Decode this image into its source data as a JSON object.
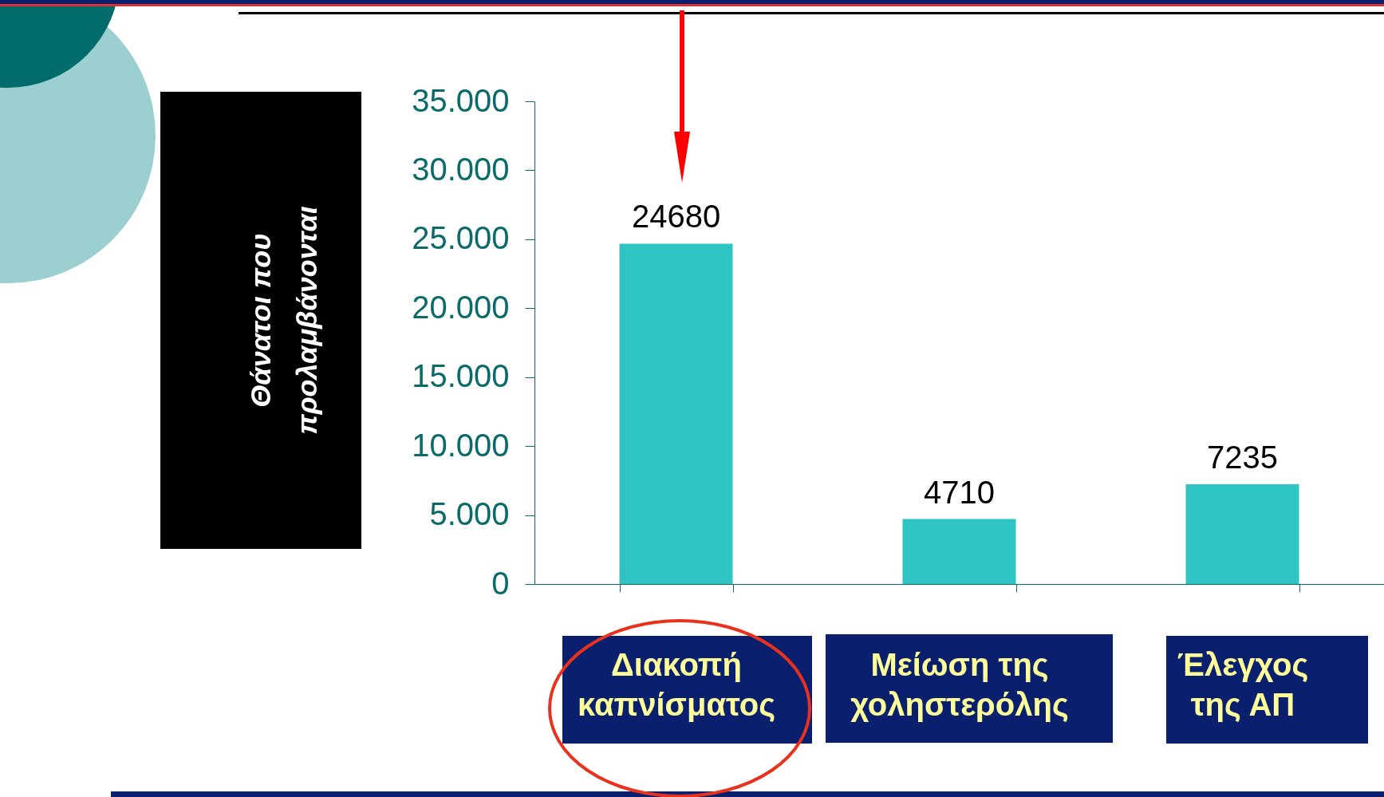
{
  "chart_data": {
    "type": "bar",
    "ylabel": "Θάνατοι που\nπρολαμβάνονται",
    "categories": [
      "Διακοπή\nκαπνίσματος",
      "Μείωση  της\nχοληστερόλης",
      "Έλεγχος\nτης ΑΠ"
    ],
    "values": [
      24680,
      4710,
      7235
    ],
    "color": "#2ec4c4",
    "data_labels": true,
    "grid": false,
    "ylim": [
      0,
      35000
    ],
    "yticks": [
      0,
      {
        "value": 5000,
        "label": "5.000"
      },
      {
        "value": 10000,
        "label": "10.000"
      },
      {
        "value": 15000,
        "label": "15.000"
      },
      {
        "value": 20000,
        "label": "20.000"
      },
      {
        "value": 25000,
        "label": "25.000"
      },
      {
        "value": 30000,
        "label": "30.000"
      },
      {
        "value": 35000,
        "label": "35.000"
      }
    ]
  }
}
